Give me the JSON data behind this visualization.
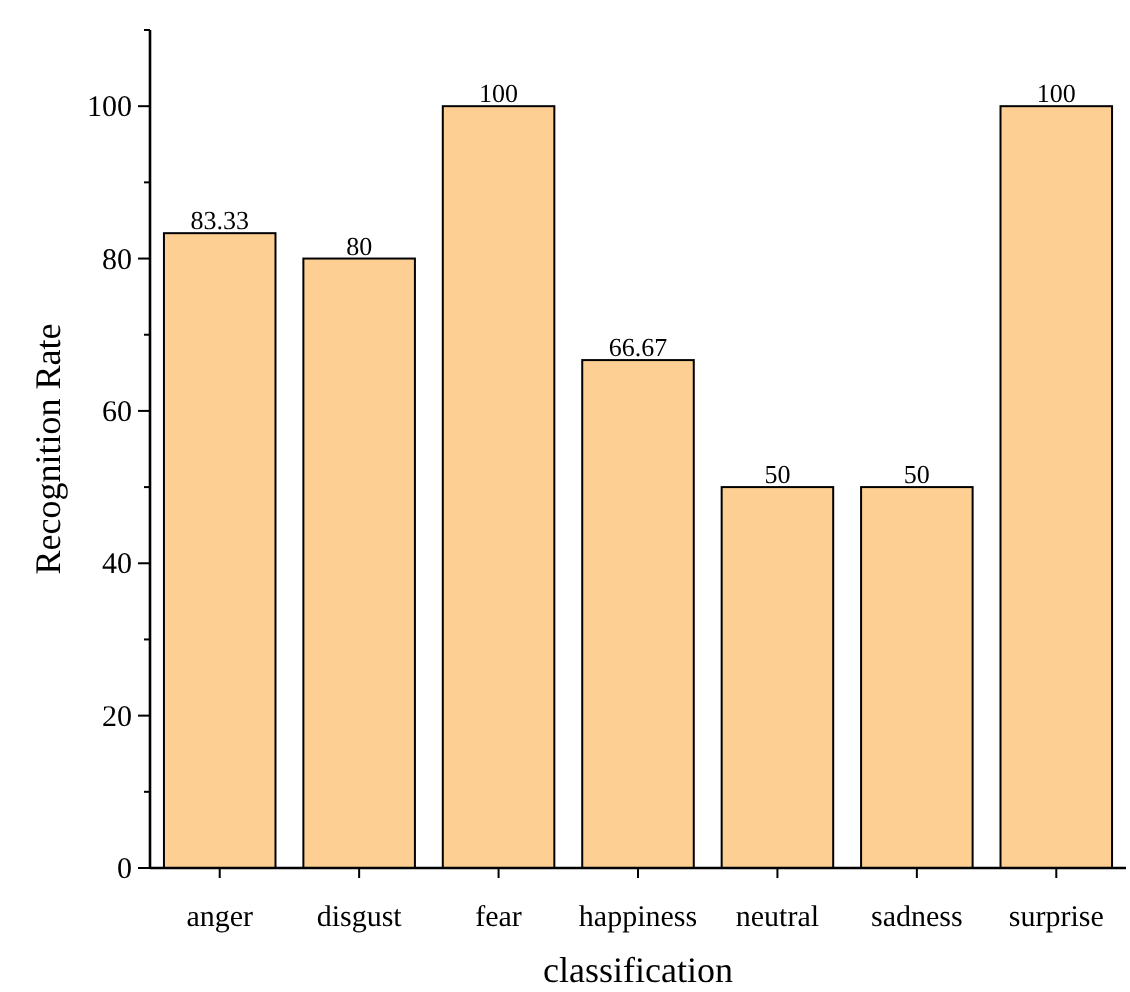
{
  "chart_data": {
    "type": "bar",
    "xlabel": "classification",
    "ylabel": "Recognition Rate",
    "categories": [
      "anger",
      "disgust",
      "fear",
      "happiness",
      "neutral",
      "sadness",
      "surprise"
    ],
    "values": [
      83.33,
      80,
      100,
      66.67,
      50,
      50,
      100
    ],
    "color": "#fecf93",
    "ylim": [
      0,
      110
    ],
    "yticks": [
      0,
      {
        "value": 10,
        "label": null
      },
      20,
      {
        "value": 30,
        "label": null
      },
      40,
      {
        "value": 50,
        "label": null
      },
      60,
      {
        "value": 70,
        "label": null
      },
      80,
      {
        "value": 90,
        "label": null
      },
      100,
      {
        "value": 110,
        "label": null
      }
    ],
    "data_labels": true,
    "grid": false
  }
}
